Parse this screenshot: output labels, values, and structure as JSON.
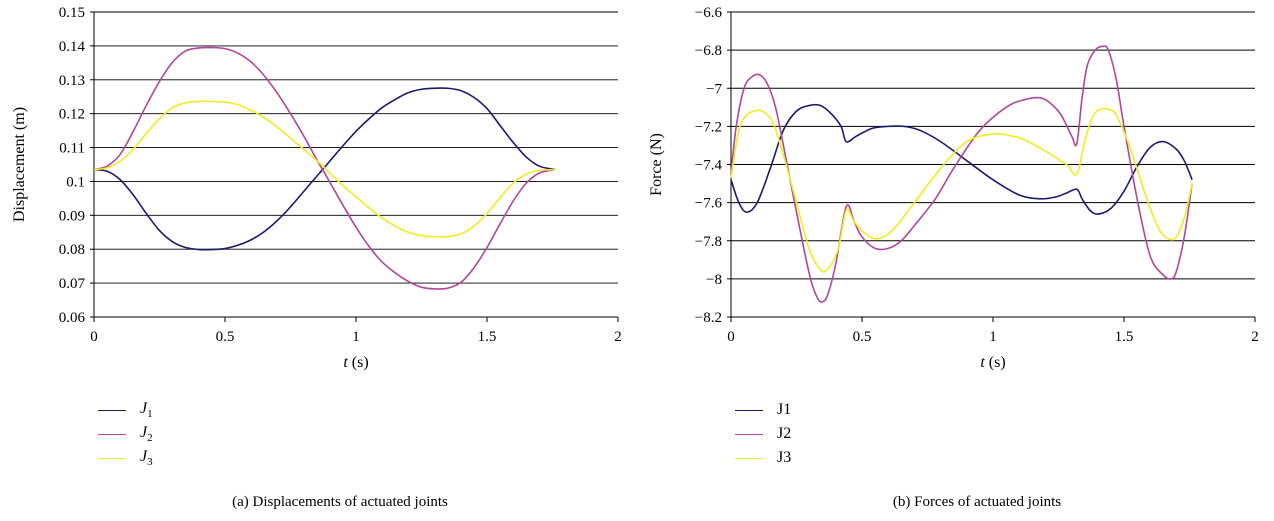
{
  "chart_data": [
    {
      "type": "line",
      "caption": "(a) Displacements of actuated joints",
      "xlabel": "t (s)",
      "ylabel": "Displacement (m)",
      "xlim": [
        0,
        2
      ],
      "ylim": [
        0.06,
        0.15
      ],
      "xticks": [
        0,
        0.5,
        1,
        1.5,
        2
      ],
      "xtick_labels": [
        "0",
        "0.5",
        "1",
        "1.5",
        "2"
      ],
      "yticks": [
        0.06,
        0.07,
        0.08,
        0.09,
        0.1,
        0.11,
        0.12,
        0.13,
        0.14,
        0.15
      ],
      "ytick_labels": [
        "0.06",
        "0.07",
        "0.08",
        "0.09",
        "0.1",
        "0.11",
        "0.12",
        "0.13",
        "0.14",
        "0.15"
      ],
      "grid": "horizontal",
      "legend": "bottom-left",
      "series": [
        {
          "name": "J1",
          "legend_main": "J",
          "legend_sub": "1",
          "color": "#1a1a6e",
          "x": [
            0,
            0.05,
            0.1,
            0.15,
            0.2,
            0.25,
            0.3,
            0.35,
            0.4,
            0.45,
            0.5,
            0.55,
            0.6,
            0.65,
            0.7,
            0.75,
            0.8,
            0.85,
            0.9,
            0.95,
            1.0,
            1.05,
            1.1,
            1.15,
            1.2,
            1.25,
            1.3,
            1.35,
            1.4,
            1.45,
            1.5,
            1.55,
            1.6,
            1.65,
            1.7,
            1.76
          ],
          "y": [
            0.1035,
            0.103,
            0.1005,
            0.096,
            0.0905,
            0.0855,
            0.0822,
            0.0805,
            0.0799,
            0.0799,
            0.0802,
            0.0812,
            0.0828,
            0.0852,
            0.0885,
            0.0925,
            0.097,
            0.1015,
            0.106,
            0.1105,
            0.1148,
            0.1185,
            0.1218,
            0.1242,
            0.1262,
            0.1272,
            0.1275,
            0.1275,
            0.1268,
            0.1248,
            0.1215,
            0.1165,
            0.1115,
            0.1072,
            0.1045,
            0.1035
          ]
        },
        {
          "name": "J2",
          "legend_main": "J",
          "legend_sub": "2",
          "color": "#b0479a",
          "x": [
            0,
            0.05,
            0.1,
            0.15,
            0.2,
            0.25,
            0.3,
            0.35,
            0.4,
            0.45,
            0.5,
            0.55,
            0.6,
            0.65,
            0.7,
            0.75,
            0.8,
            0.85,
            0.9,
            0.95,
            1.0,
            1.05,
            1.1,
            1.15,
            1.2,
            1.25,
            1.3,
            1.35,
            1.4,
            1.45,
            1.5,
            1.55,
            1.6,
            1.65,
            1.7,
            1.76
          ],
          "y": [
            0.1035,
            0.1045,
            0.108,
            0.1148,
            0.1225,
            0.1295,
            0.1352,
            0.1385,
            0.1394,
            0.1395,
            0.1392,
            0.1378,
            0.1352,
            0.1312,
            0.126,
            0.12,
            0.1135,
            0.1065,
            0.0998,
            0.093,
            0.0865,
            0.0808,
            0.0762,
            0.073,
            0.0705,
            0.0688,
            0.0683,
            0.0685,
            0.0702,
            0.0745,
            0.0805,
            0.0875,
            0.0942,
            0.0995,
            0.1025,
            0.1035
          ]
        },
        {
          "name": "J3",
          "legend_main": "J",
          "legend_sub": "3",
          "color": "#f0ec1e",
          "x": [
            0,
            0.05,
            0.1,
            0.15,
            0.2,
            0.25,
            0.3,
            0.35,
            0.4,
            0.45,
            0.5,
            0.55,
            0.6,
            0.65,
            0.7,
            0.75,
            0.8,
            0.85,
            0.9,
            0.95,
            1.0,
            1.05,
            1.1,
            1.15,
            1.2,
            1.25,
            1.3,
            1.35,
            1.4,
            1.45,
            1.5,
            1.55,
            1.6,
            1.65,
            1.7,
            1.76
          ],
          "y": [
            0.1035,
            0.104,
            0.106,
            0.1095,
            0.1142,
            0.1185,
            0.1218,
            0.1232,
            0.1236,
            0.1236,
            0.1234,
            0.1226,
            0.121,
            0.1188,
            0.116,
            0.1128,
            0.1095,
            0.1062,
            0.1025,
            0.0988,
            0.0955,
            0.0922,
            0.0892,
            0.0868,
            0.085,
            0.084,
            0.0837,
            0.0837,
            0.0845,
            0.0868,
            0.0905,
            0.0952,
            0.0995,
            0.1022,
            0.1033,
            0.1035
          ]
        }
      ]
    },
    {
      "type": "line",
      "caption": "(b) Forces of actuated joints",
      "xlabel": "t (s)",
      "ylabel": "Force (N)",
      "xlim": [
        0,
        2
      ],
      "ylim": [
        -8.2,
        -6.6
      ],
      "xticks": [
        0,
        0.5,
        1,
        1.5,
        2
      ],
      "xtick_labels": [
        "0",
        "0.5",
        "1",
        "1.5",
        "2"
      ],
      "yticks": [
        -8.2,
        -8.0,
        -7.8,
        -7.6,
        -7.4,
        -7.2,
        -7.0,
        -6.8,
        -6.6
      ],
      "ytick_labels": [
        "−8.2",
        "−8",
        "−7.8",
        "−7.6",
        "−7.4",
        "−7.2",
        "−7",
        "−6.8",
        "−6.6"
      ],
      "grid": "horizontal",
      "legend": "bottom-left",
      "series": [
        {
          "name": "J1",
          "legend_main": "J1",
          "legend_sub": "",
          "color": "#1a1a6e",
          "x": [
            0,
            0.03,
            0.06,
            0.1,
            0.15,
            0.2,
            0.25,
            0.3,
            0.34,
            0.38,
            0.42,
            0.44,
            0.48,
            0.54,
            0.6,
            0.66,
            0.72,
            0.8,
            0.9,
            1.0,
            1.1,
            1.18,
            1.24,
            1.28,
            1.32,
            1.34,
            1.37,
            1.4,
            1.45,
            1.5,
            1.55,
            1.6,
            1.65,
            1.7,
            1.73,
            1.76
          ],
          "y": [
            -7.48,
            -7.6,
            -7.65,
            -7.6,
            -7.42,
            -7.22,
            -7.12,
            -7.09,
            -7.09,
            -7.13,
            -7.2,
            -7.28,
            -7.25,
            -7.21,
            -7.2,
            -7.2,
            -7.22,
            -7.28,
            -7.38,
            -7.48,
            -7.56,
            -7.58,
            -7.57,
            -7.55,
            -7.53,
            -7.58,
            -7.64,
            -7.66,
            -7.63,
            -7.54,
            -7.41,
            -7.31,
            -7.28,
            -7.32,
            -7.38,
            -7.48
          ]
        },
        {
          "name": "J2",
          "legend_main": "J2",
          "legend_sub": "",
          "color": "#b0479a",
          "x": [
            0,
            0.02,
            0.05,
            0.08,
            0.11,
            0.14,
            0.17,
            0.2,
            0.25,
            0.3,
            0.33,
            0.35,
            0.37,
            0.4,
            0.44,
            0.47,
            0.5,
            0.55,
            0.6,
            0.65,
            0.7,
            0.78,
            0.85,
            0.95,
            1.05,
            1.12,
            1.18,
            1.22,
            1.26,
            1.3,
            1.32,
            1.34,
            1.36,
            1.39,
            1.42,
            1.44,
            1.47,
            1.5,
            1.55,
            1.6,
            1.65,
            1.68,
            1.7,
            1.73,
            1.76
          ],
          "y": [
            -7.45,
            -7.2,
            -7.0,
            -6.94,
            -6.93,
            -6.98,
            -7.1,
            -7.3,
            -7.65,
            -7.98,
            -8.1,
            -8.12,
            -8.08,
            -7.92,
            -7.62,
            -7.7,
            -7.78,
            -7.84,
            -7.84,
            -7.8,
            -7.72,
            -7.58,
            -7.42,
            -7.22,
            -7.1,
            -7.06,
            -7.05,
            -7.08,
            -7.14,
            -7.25,
            -7.29,
            -7.05,
            -6.88,
            -6.8,
            -6.78,
            -6.8,
            -6.95,
            -7.2,
            -7.58,
            -7.88,
            -7.98,
            -8.0,
            -7.96,
            -7.78,
            -7.5
          ]
        },
        {
          "name": "J3",
          "legend_main": "J3",
          "legend_sub": "",
          "color": "#f0ec1e",
          "x": [
            0,
            0.03,
            0.06,
            0.09,
            0.12,
            0.16,
            0.2,
            0.25,
            0.3,
            0.34,
            0.36,
            0.38,
            0.41,
            0.44,
            0.47,
            0.51,
            0.56,
            0.62,
            0.7,
            0.8,
            0.9,
            1.0,
            1.07,
            1.12,
            1.2,
            1.28,
            1.32,
            1.35,
            1.38,
            1.41,
            1.44,
            1.47,
            1.52,
            1.58,
            1.63,
            1.67,
            1.7,
            1.73,
            1.76
          ],
          "y": [
            -7.47,
            -7.22,
            -7.14,
            -7.12,
            -7.12,
            -7.18,
            -7.35,
            -7.6,
            -7.85,
            -7.95,
            -7.96,
            -7.93,
            -7.84,
            -7.64,
            -7.7,
            -7.76,
            -7.79,
            -7.74,
            -7.6,
            -7.42,
            -7.28,
            -7.24,
            -7.25,
            -7.27,
            -7.33,
            -7.4,
            -7.45,
            -7.28,
            -7.15,
            -7.11,
            -7.11,
            -7.14,
            -7.3,
            -7.55,
            -7.73,
            -7.79,
            -7.78,
            -7.68,
            -7.5
          ]
        }
      ]
    }
  ]
}
